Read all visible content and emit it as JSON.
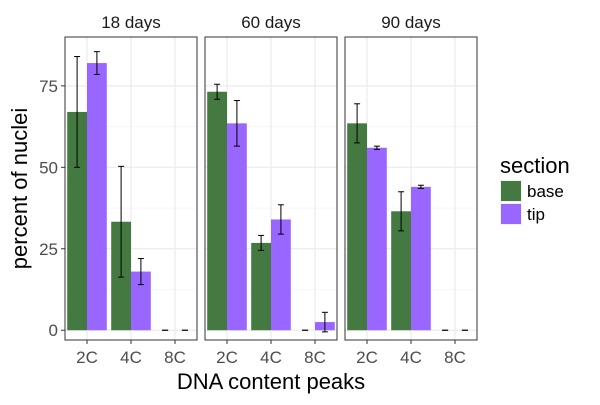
{
  "chart_data": {
    "type": "bar",
    "xlabel": "DNA content peaks",
    "ylabel": "percent of nuclei",
    "categories": [
      "2C",
      "4C",
      "8C"
    ],
    "ylim": [
      -3,
      90
    ],
    "yticks": [
      0,
      25,
      50,
      75
    ],
    "grid": true,
    "legend": {
      "title": "section",
      "placement": "right",
      "entries": [
        {
          "name": "base",
          "color": "#447A41"
        },
        {
          "name": "tip",
          "color": "#9966FF"
        }
      ]
    },
    "panels": [
      {
        "title": "18 days",
        "series": [
          {
            "name": "base",
            "values": [
              67,
              33.3,
              0
            ],
            "errors": [
              17,
              17,
              0
            ]
          },
          {
            "name": "tip",
            "values": [
              82,
              18,
              0
            ],
            "errors": [
              3.5,
              4,
              0
            ]
          }
        ]
      },
      {
        "title": "60 days",
        "series": [
          {
            "name": "base",
            "values": [
              73.2,
              26.8,
              0
            ],
            "errors": [
              2.3,
              2.3,
              0
            ]
          },
          {
            "name": "tip",
            "values": [
              63.5,
              34,
              2.5
            ],
            "errors": [
              7,
              4.5,
              3
            ]
          }
        ]
      },
      {
        "title": "90 days",
        "series": [
          {
            "name": "base",
            "values": [
              63.5,
              36.5,
              0
            ],
            "errors": [
              6,
              6,
              0
            ]
          },
          {
            "name": "tip",
            "values": [
              56,
              44,
              0
            ],
            "errors": [
              0.5,
              0.5,
              0
            ]
          }
        ]
      }
    ]
  }
}
